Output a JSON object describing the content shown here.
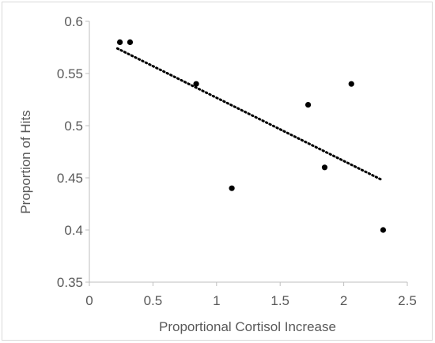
{
  "chart_data": {
    "type": "scatter",
    "xlabel": "Proportional Cortisol Increase",
    "ylabel": "Proportion of Hits",
    "xlim": [
      0,
      2.5
    ],
    "ylim": [
      0.35,
      0.6
    ],
    "x_ticks": [
      "0",
      "0.5",
      "1",
      "1.5",
      "2",
      "2.5"
    ],
    "y_ticks": [
      "0.35",
      "0.4",
      "0.45",
      "0.5",
      "0.55",
      "0.6"
    ],
    "x_tick_values": [
      0,
      0.5,
      1,
      1.5,
      2,
      2.5
    ],
    "y_tick_values": [
      0.35,
      0.4,
      0.45,
      0.5,
      0.55,
      0.6
    ],
    "grid": false,
    "series": [
      {
        "points": [
          {
            "x": 0.24,
            "y": 0.58
          },
          {
            "x": 0.32,
            "y": 0.58
          },
          {
            "x": 0.84,
            "y": 0.54
          },
          {
            "x": 1.12,
            "y": 0.44
          },
          {
            "x": 1.72,
            "y": 0.52
          },
          {
            "x": 1.85,
            "y": 0.46
          },
          {
            "x": 2.06,
            "y": 0.54
          },
          {
            "x": 2.31,
            "y": 0.4
          }
        ],
        "color": "#000000"
      }
    ],
    "trendline": {
      "type": "linear",
      "style": "dotted",
      "color": "#000000",
      "start": {
        "x": 0.22,
        "y": 0.574
      },
      "end": {
        "x": 2.3,
        "y": 0.448
      }
    }
  }
}
